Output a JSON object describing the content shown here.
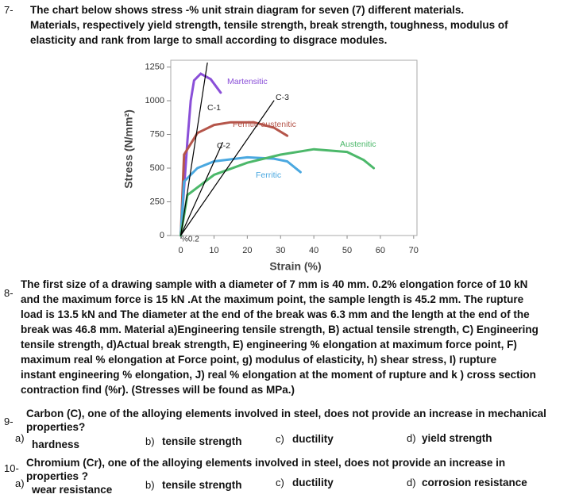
{
  "q7": {
    "number": "7-",
    "lines": [
      "The chart below shows stress -% unit strain diagram for seven (7) different materials.",
      "Materials, respectively yield strength, tensile strength, break strength, toughness, modulus of",
      "elasticity and rank from large to small according to disgrace modules."
    ]
  },
  "chart_data": {
    "type": "line",
    "x_label": "Strain (%)",
    "y_label": "Stress (N/mm²)",
    "annotation": "%0.2",
    "xlim": [
      -3,
      71
    ],
    "ylim": [
      0,
      1300
    ],
    "xticks": [
      0,
      10,
      20,
      30,
      40,
      50,
      60,
      70
    ],
    "yticks": [
      0,
      250,
      500,
      750,
      1000,
      1250
    ],
    "series": [
      {
        "name": "Martensitic",
        "color": "#8a4fd8",
        "x": [
          0,
          2,
          3,
          4,
          6,
          9,
          12
        ],
        "values": [
          0,
          700,
          1000,
          1150,
          1200,
          1160,
          1060
        ]
      },
      {
        "name": "Ferritic-austenitic",
        "color": "#b5554a",
        "x": [
          0,
          1,
          5,
          10,
          15,
          22,
          28,
          32
        ],
        "values": [
          0,
          600,
          760,
          820,
          840,
          840,
          800,
          740
        ]
      },
      {
        "name": "Ferritic",
        "color": "#4aa8e0",
        "x": [
          0,
          1,
          5,
          10,
          20,
          28,
          32,
          36
        ],
        "values": [
          0,
          400,
          500,
          550,
          580,
          570,
          550,
          470
        ]
      },
      {
        "name": "Austenitic",
        "color": "#4cb86a",
        "x": [
          0,
          2,
          10,
          20,
          30,
          40,
          50,
          55,
          58
        ],
        "values": [
          0,
          300,
          450,
          540,
          600,
          640,
          620,
          560,
          500
        ]
      },
      {
        "name": "C-1",
        "color": "#000000",
        "x": [
          0,
          8
        ],
        "values": [
          0,
          1280
        ]
      },
      {
        "name": "C-2",
        "color": "#000000",
        "x": [
          0,
          12.6
        ],
        "values": [
          0,
          690
        ]
      },
      {
        "name": "C-3",
        "color": "#000000",
        "x": [
          0,
          28
        ],
        "values": [
          0,
          1000
        ]
      }
    ]
  },
  "q8": {
    "number": "8-",
    "lines": [
      "The first size of a drawing sample with a diameter of 7 mm is 40 mm. 0.2% elongation force of 10 kN",
      "and the maximum force is 15 kN .At the maximum point, the sample length is 45.2 mm. The rupture",
      "load is 13.5 kN and The diameter at the end of the break was 6.3 mm and the length at the end of the",
      "break was 46.8 mm. Material a)Engineering tensile strength, B) actual tensile strength, C) Engineering",
      "tensile strength, d)Actual break strength, E) engineering % elongation at maximum force point, F)",
      "maximum real % elongation at Force point, g) modulus of elasticity, h) shear stress, I) rupture",
      "instant engineering % elongation, J) real % elongation at the moment of rupture and k ) cross section",
      "contraction find (%r). (Stresses will be found as MPa.)"
    ]
  },
  "q9": {
    "number": "9-",
    "lines": [
      "Carbon (C), one of the alloying elements involved in steel, does not provide an increase in mechanical",
      "properties?"
    ],
    "options": [
      {
        "label": "a)",
        "text": "hardness"
      },
      {
        "label": "b)",
        "text": "tensile strength"
      },
      {
        "label": "c)",
        "text": "ductility"
      },
      {
        "label": "d)",
        "text": "yield strength"
      }
    ]
  },
  "q10": {
    "number": "10-",
    "lines": [
      "Chromium (Cr), one of the alloying elements involved in steel, does not provide an increase in",
      "properties ?"
    ],
    "options": [
      {
        "label": "a)",
        "text": "wear resistance"
      },
      {
        "label": "b)",
        "text": "tensile strength"
      },
      {
        "label": "c)",
        "text": "ductility"
      },
      {
        "label": "d)",
        "text": "corrosion resistance"
      }
    ]
  }
}
